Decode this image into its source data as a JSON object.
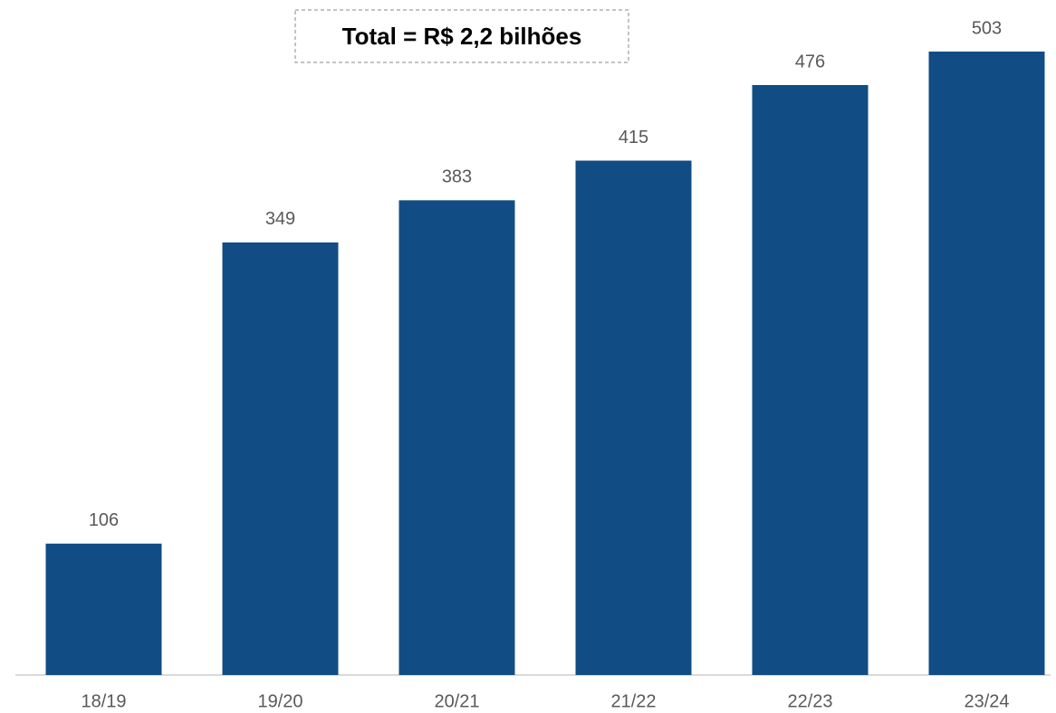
{
  "chart_data": {
    "type": "bar",
    "annotation": "Total = R$ 2,2 bilhões",
    "categories": [
      "18/19",
      "19/20",
      "20/21",
      "21/22",
      "22/23",
      "23/24"
    ],
    "values": [
      106,
      349,
      383,
      415,
      476,
      503
    ],
    "color": "#114d84",
    "ylim": [
      0,
      530
    ]
  }
}
